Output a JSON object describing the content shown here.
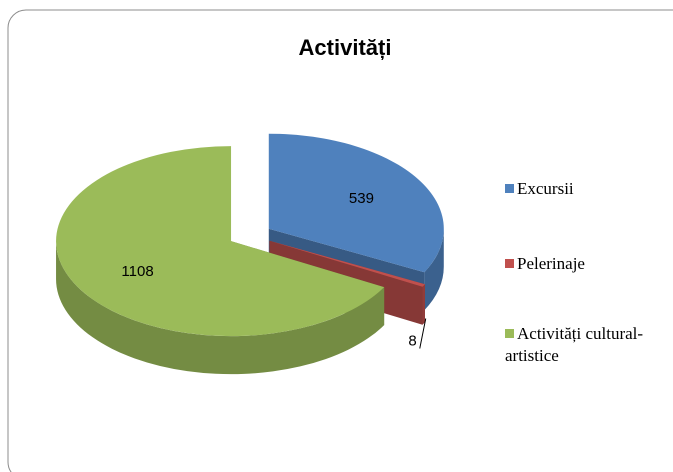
{
  "chart_data": {
    "type": "pie",
    "title": "Activități",
    "categories": [
      "Excursii",
      "Pelerinaje",
      "Activități cultural-artistice"
    ],
    "values": [
      539,
      8,
      1108
    ],
    "colors": [
      "#4f81bd",
      "#c0504d",
      "#9bbb59"
    ],
    "legend": "right"
  }
}
